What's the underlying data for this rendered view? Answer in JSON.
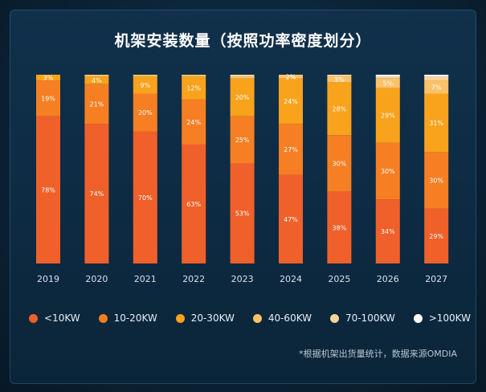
{
  "chart_data": {
    "type": "bar",
    "stacked": true,
    "title": "机架安装数量（按照功率密度划分）",
    "categories": [
      "2019",
      "2020",
      "2021",
      "2022",
      "2023",
      "2024",
      "2025",
      "2026",
      "2027"
    ],
    "ylim": [
      0,
      100
    ],
    "grid": false,
    "legend_position": "bottom",
    "series": [
      {
        "name": "<10KW",
        "color": "#f0602a",
        "values": [
          78,
          74,
          70,
          63,
          53,
          47,
          38,
          34,
          29
        ],
        "labels": [
          "78%",
          "74%",
          "70%",
          "63%",
          "53%",
          "47%",
          "38%",
          "34%",
          "29%"
        ]
      },
      {
        "name": "10-20KW",
        "color": "#f57f22",
        "values": [
          19,
          21,
          20,
          24,
          25,
          27,
          30,
          30,
          30
        ],
        "labels": [
          "19%",
          "21%",
          "20%",
          "24%",
          "25%",
          "27%",
          "30%",
          "30%",
          "30%"
        ]
      },
      {
        "name": "20-30KW",
        "color": "#f9a21c",
        "values": [
          3,
          4,
          9,
          12,
          20,
          24,
          28,
          29,
          31
        ],
        "labels": [
          "3%",
          "4%",
          "9%",
          "12%",
          "20%",
          "24%",
          "28%",
          "29%",
          "31%"
        ]
      },
      {
        "name": "40-60KW",
        "color": "#fbc26a",
        "values": [
          0,
          1,
          1,
          1,
          1,
          2,
          3,
          5,
          7
        ],
        "labels": [
          "",
          "",
          "",
          "",
          "",
          "2%",
          "3%",
          "5%",
          "7%"
        ]
      },
      {
        "name": "70-100KW",
        "color": "#f7d49a",
        "values": [
          0,
          0,
          0,
          0,
          1,
          0,
          1,
          1,
          2
        ],
        "labels": [
          "",
          "",
          "",
          "",
          "",
          "",
          "",
          "",
          ""
        ]
      },
      {
        "name": ">100KW",
        "color": "#ffffff",
        "values": [
          0,
          0,
          0,
          0,
          0,
          0,
          0,
          1,
          1
        ],
        "labels": [
          "",
          "",
          "",
          "",
          "",
          "",
          "",
          "",
          ""
        ]
      }
    ]
  },
  "footnote": "*根据机架出货量统计，数据来源OMDIA"
}
